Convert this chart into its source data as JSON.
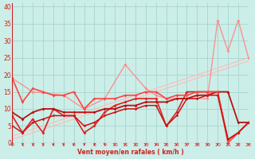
{
  "xlabel": "Vent moyen/en rafales ( km/h )",
  "xlim": [
    0,
    23
  ],
  "ylim": [
    0,
    41
  ],
  "yticks": [
    0,
    5,
    10,
    15,
    20,
    25,
    30,
    35,
    40
  ],
  "xticks": [
    0,
    1,
    2,
    3,
    4,
    5,
    6,
    7,
    8,
    9,
    10,
    11,
    12,
    13,
    14,
    15,
    16,
    17,
    18,
    19,
    20,
    21,
    22,
    23
  ],
  "bg_color": "#cceee8",
  "grid_color": "#aad8d2",
  "series": [
    {
      "x": [
        0,
        1,
        2,
        3,
        4,
        5,
        6,
        7,
        8,
        9,
        10,
        11,
        12,
        13,
        14,
        15,
        16,
        17,
        18,
        19,
        20,
        21,
        22,
        23
      ],
      "y": [
        1,
        2,
        3,
        4,
        5,
        6,
        7,
        8,
        9,
        10,
        11,
        12,
        13,
        14,
        15,
        16,
        17,
        18,
        19,
        20,
        21,
        22,
        23,
        24
      ],
      "color": "#ffbbbb",
      "lw": 1.0,
      "marker": null,
      "ms": 0,
      "alpha": 0.85
    },
    {
      "x": [
        0,
        1,
        2,
        3,
        4,
        5,
        6,
        7,
        8,
        9,
        10,
        11,
        12,
        13,
        14,
        15,
        16,
        17,
        18,
        19,
        20,
        21,
        22,
        23
      ],
      "y": [
        2,
        3,
        4,
        5,
        6,
        7,
        8,
        9,
        10,
        11,
        12,
        13,
        14,
        15,
        16,
        17,
        18,
        19,
        20,
        21,
        22,
        23,
        24,
        25
      ],
      "color": "#ffbbbb",
      "lw": 1.0,
      "marker": null,
      "ms": 0,
      "alpha": 0.85
    },
    {
      "x": [
        0,
        2,
        5,
        7,
        9,
        11,
        13,
        14,
        15,
        17,
        19,
        20,
        21,
        22,
        23
      ],
      "y": [
        19,
        15,
        14,
        10,
        13,
        23,
        16,
        14,
        13,
        13,
        13,
        36,
        27,
        36,
        25
      ],
      "color": "#ff8888",
      "lw": 1.0,
      "marker": "D",
      "ms": 2.0,
      "alpha": 0.9
    },
    {
      "x": [
        0,
        1,
        2,
        3,
        4,
        5,
        6,
        7,
        8,
        9,
        10,
        11,
        12,
        13,
        14,
        15,
        16,
        17,
        18,
        19,
        20,
        21,
        22,
        23
      ],
      "y": [
        8,
        3,
        7,
        3,
        10,
        8,
        8,
        3,
        5,
        9,
        11,
        12,
        13,
        13,
        13,
        5,
        9,
        15,
        15,
        15,
        15,
        1,
        3,
        6
      ],
      "color": "#dd2222",
      "lw": 1.2,
      "marker": "D",
      "ms": 2.0,
      "alpha": 1.0
    },
    {
      "x": [
        0,
        1,
        2,
        3,
        4,
        5,
        6,
        7,
        8,
        9,
        10,
        11,
        12,
        13,
        14,
        15,
        16,
        17,
        18,
        19,
        20,
        21,
        22,
        23
      ],
      "y": [
        9,
        7,
        9,
        10,
        10,
        9,
        9,
        9,
        9,
        10,
        10,
        11,
        11,
        12,
        12,
        12,
        13,
        13,
        14,
        14,
        15,
        15,
        6,
        6
      ],
      "color": "#bb1111",
      "lw": 1.3,
      "marker": "D",
      "ms": 2.0,
      "alpha": 1.0
    },
    {
      "x": [
        0,
        1,
        2,
        3,
        4,
        5,
        6,
        7,
        8,
        9,
        10,
        11,
        12,
        13,
        14,
        15,
        16,
        17,
        18,
        19,
        20,
        21,
        22,
        23
      ],
      "y": [
        19,
        12,
        16,
        15,
        14,
        14,
        15,
        10,
        13,
        13,
        13,
        14,
        14,
        15,
        15,
        13,
        14,
        14,
        15,
        15,
        15,
        0,
        3,
        6
      ],
      "color": "#ff4444",
      "lw": 1.2,
      "marker": "D",
      "ms": 2.0,
      "alpha": 1.0
    },
    {
      "x": [
        0,
        1,
        2,
        3,
        4,
        5,
        6,
        7,
        8,
        9,
        10,
        11,
        12,
        13,
        14,
        15,
        16,
        17,
        18,
        19,
        20,
        21,
        22,
        23
      ],
      "y": [
        5,
        3,
        6,
        7,
        8,
        8,
        8,
        5,
        6,
        8,
        9,
        10,
        10,
        11,
        11,
        5,
        8,
        13,
        13,
        14,
        14,
        1,
        3,
        6
      ],
      "color": "#cc1111",
      "lw": 1.1,
      "marker": "D",
      "ms": 1.8,
      "alpha": 1.0
    }
  ],
  "arrow_color": "#cc2222",
  "axis_label_color": "#cc2222",
  "tick_label_color": "#cc2222"
}
